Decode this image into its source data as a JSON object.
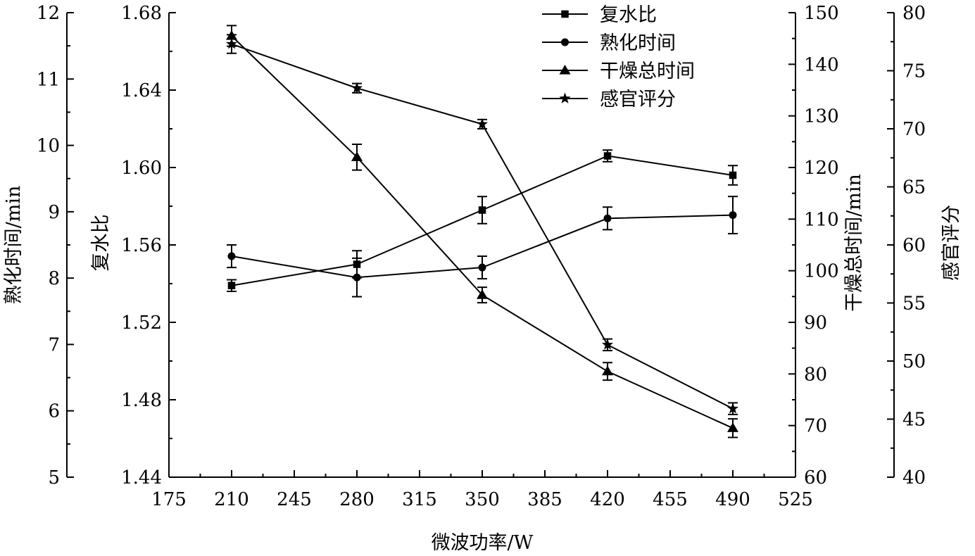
{
  "chart_data": {
    "type": "line",
    "xlabel": "微波功率/W",
    "xlim": [
      175,
      525
    ],
    "xticks": [
      175,
      210,
      245,
      280,
      315,
      350,
      385,
      420,
      455,
      490,
      525
    ],
    "x": [
      210,
      280,
      350,
      420,
      490
    ],
    "axes": [
      {
        "id": "cook",
        "label": "熟化时间/min",
        "side": "left-outer",
        "ylim": [
          5,
          12
        ],
        "ticks": [
          "5",
          "6",
          "7",
          "8",
          "9",
          "10",
          "11",
          "12"
        ]
      },
      {
        "id": "rehy",
        "label": "复水比",
        "side": "left-inner",
        "ylim": [
          1.44,
          1.68
        ],
        "ticks": [
          "1.44",
          "1.48",
          "1.52",
          "1.56",
          "1.60",
          "1.64",
          "1.68"
        ]
      },
      {
        "id": "dry",
        "label": "干燥总时间/min",
        "side": "right-inner",
        "ylim": [
          60,
          150
        ],
        "ticks": [
          "60",
          "70",
          "80",
          "90",
          "100",
          "110",
          "120",
          "130",
          "140",
          "150"
        ]
      },
      {
        "id": "sens",
        "label": "感官评分",
        "side": "right-outer",
        "ylim": [
          40,
          80
        ],
        "ticks": [
          "40",
          "45",
          "50",
          "55",
          "60",
          "65",
          "70",
          "75",
          "80"
        ]
      }
    ],
    "series": [
      {
        "name": "复水比",
        "axis": "rehy",
        "marker": "square",
        "values": [
          1.539,
          1.55,
          1.578,
          1.606,
          1.596
        ],
        "errors": [
          0.003,
          0.007,
          0.007,
          0.003,
          0.005
        ]
      },
      {
        "name": "熟化时间",
        "axis": "cook",
        "marker": "circle",
        "values": [
          8.33,
          8.01,
          8.16,
          8.9,
          8.95
        ],
        "errors": [
          0.17,
          0.29,
          0.17,
          0.17,
          0.28
        ]
      },
      {
        "name": "干燥总时间",
        "axis": "dry",
        "marker": "triangle",
        "values": [
          145.5,
          122.0,
          95.3,
          80.5,
          69.5
        ],
        "errors": [
          2.0,
          2.5,
          1.5,
          1.7,
          1.8
        ]
      },
      {
        "name": "感官评分",
        "axis": "sens",
        "marker": "star",
        "values": [
          77.3,
          73.5,
          70.4,
          51.4,
          45.9
        ],
        "errors": [
          0.8,
          0.4,
          0.4,
          0.5,
          0.5
        ]
      }
    ],
    "legend_position": "top-right",
    "grid": false
  }
}
